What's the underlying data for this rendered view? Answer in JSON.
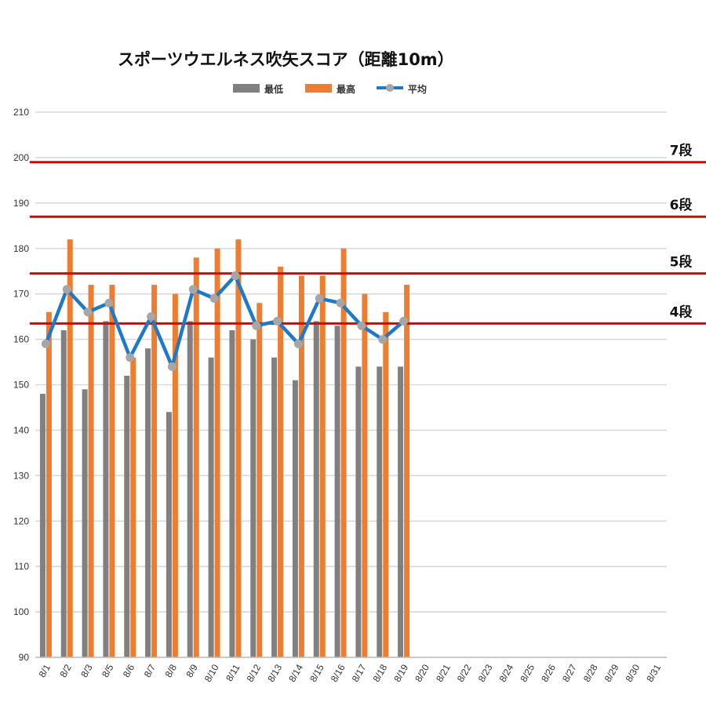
{
  "chart_data": {
    "type": "bar",
    "title": "スポーツウエルネス吹矢スコア（距離10m）",
    "categories": [
      "8/1",
      "8/2",
      "8/3",
      "8/5",
      "8/6",
      "8/7",
      "8/8",
      "8/9",
      "8/10",
      "8/11",
      "8/12",
      "8/13",
      "8/14",
      "8/15",
      "8/16",
      "8/17",
      "8/18",
      "8/19",
      "8/20",
      "8/21",
      "8/22",
      "8/23",
      "8/24",
      "8/25",
      "8/26",
      "8/27",
      "8/28",
      "8/29",
      "8/30",
      "8/31"
    ],
    "series": [
      {
        "name": "最低",
        "type": "bar",
        "color": "#808080",
        "values": [
          148,
          162,
          149,
          164,
          152,
          158,
          144,
          164,
          156,
          162,
          160,
          156,
          151,
          164,
          163,
          154,
          154,
          154,
          null,
          null,
          null,
          null,
          null,
          null,
          null,
          null,
          null,
          null,
          null,
          null
        ]
      },
      {
        "name": "最高",
        "type": "bar",
        "color": "#ED7D31",
        "values": [
          166,
          182,
          172,
          172,
          156,
          172,
          170,
          178,
          180,
          182,
          168,
          176,
          174,
          174,
          180,
          170,
          166,
          172,
          null,
          null,
          null,
          null,
          null,
          null,
          null,
          null,
          null,
          null,
          null,
          null
        ]
      },
      {
        "name": "平均",
        "type": "line",
        "color": "#1F78C8",
        "marker_color": "#A6A6A6",
        "values": [
          159,
          171,
          166,
          168,
          156,
          165,
          154,
          171,
          169,
          174,
          163,
          164,
          159,
          169,
          168,
          163,
          160,
          164,
          null,
          null,
          null,
          null,
          null,
          null,
          null,
          null,
          null,
          null,
          null,
          null
        ]
      }
    ],
    "ylim": [
      90,
      210
    ],
    "yticks": [
      90,
      100,
      110,
      120,
      130,
      140,
      150,
      160,
      170,
      180,
      190,
      200,
      210
    ],
    "grid": true,
    "legend_position": "top",
    "reference_lines": [
      {
        "label": "7段",
        "value": 199,
        "color": "#E00000"
      },
      {
        "label": "6段",
        "value": 187,
        "color": "#E00000"
      },
      {
        "label": "5段",
        "value": 174.5,
        "color": "#E00000"
      },
      {
        "label": "4段",
        "value": 163.5,
        "color": "#E00000"
      }
    ]
  }
}
